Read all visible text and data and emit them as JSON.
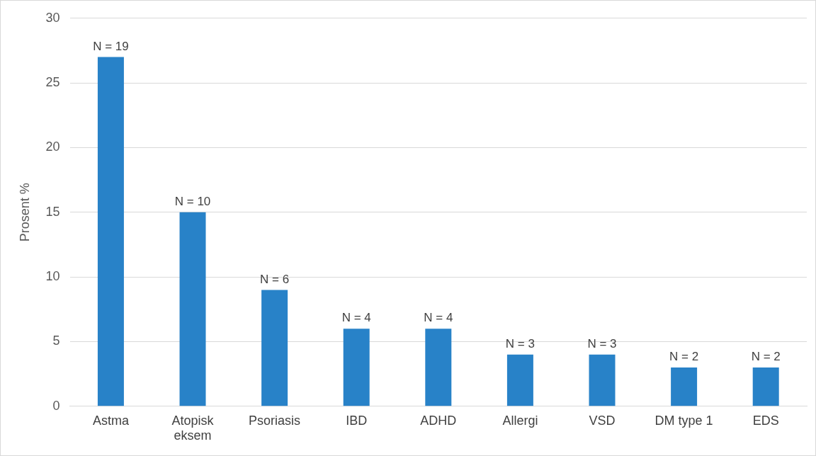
{
  "chart_data": {
    "type": "bar",
    "ylabel": "Prosent %",
    "categories": [
      "Astma",
      "Atopisk eksem",
      "Psoriasis",
      "IBD",
      "ADHD",
      "Allergi",
      "VSD",
      "DM type 1",
      "EDS"
    ],
    "values": [
      27,
      15,
      9,
      6,
      6,
      4,
      4,
      3,
      3
    ],
    "annotations": [
      {
        "text": "N = 19",
        "x": "Astma",
        "y": 27
      },
      {
        "text": "N = 10",
        "x": "Atopisk eksem",
        "y": 15
      },
      {
        "text": "N = 6",
        "x": "Psoriasis",
        "y": 9
      },
      {
        "text": "N = 4",
        "x": "IBD",
        "y": 6
      },
      {
        "text": "N = 4",
        "x": "ADHD",
        "y": 6
      },
      {
        "text": "N = 3",
        "x": "Allergi",
        "y": 4
      },
      {
        "text": "N = 3",
        "x": "VSD",
        "y": 4
      },
      {
        "text": "N = 2",
        "x": "DM type 1",
        "y": 3
      },
      {
        "text": "N = 2",
        "x": "EDS",
        "y": 3
      }
    ],
    "color": "#2882c8",
    "ylim": [
      0,
      30
    ],
    "yticks": [
      0,
      5,
      10,
      15,
      20,
      25,
      30
    ],
    "grid": "y",
    "legend": false
  }
}
